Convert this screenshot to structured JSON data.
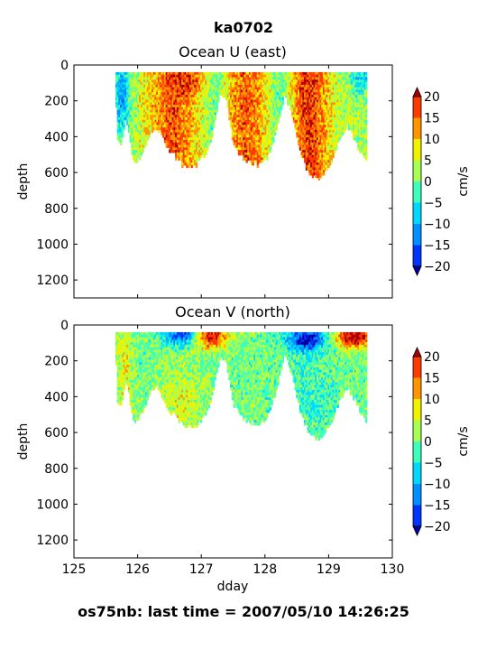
{
  "figure": {
    "title": "ka0702",
    "footer": "os75nb: last time = 2007/05/10 14:26:25"
  },
  "colorbar": {
    "label": "cm/s",
    "ticks": [
      20,
      15,
      10,
      5,
      0,
      -5,
      -10,
      -15,
      -20
    ],
    "tick_labels": [
      "20",
      "15",
      "10",
      "5",
      "0",
      "−5",
      "−10",
      "−15",
      "−20"
    ],
    "colors": [
      "#0000a0",
      "#0034ff",
      "#0090ff",
      "#00d8ff",
      "#3dffba",
      "#a6ff52",
      "#f0f200",
      "#ff9600",
      "#ff3a00",
      "#a80000"
    ],
    "vmin": -20,
    "vmax": 20,
    "extend": "both"
  },
  "chart_data": [
    {
      "type": "heatmap",
      "title": "Ocean U (east)",
      "xlabel": "",
      "ylabel": "depth",
      "xlim": [
        125,
        130
      ],
      "ylim": [
        1300,
        0
      ],
      "x_ticks": [
        125,
        126,
        127,
        128,
        129,
        130
      ],
      "y_ticks": [
        0,
        200,
        400,
        600,
        800,
        1000,
        1200
      ],
      "y_tick_labels": [
        "0",
        "200",
        "400",
        "600",
        "800",
        "1000",
        "1200"
      ],
      "data_start": 125.65,
      "data_end": 129.6,
      "surface_depth": 40,
      "profile_depth_envelope": [
        [
          125.65,
          80
        ],
        [
          125.68,
          420
        ],
        [
          125.75,
          440
        ],
        [
          125.82,
          280
        ],
        [
          125.9,
          470
        ],
        [
          125.95,
          540
        ],
        [
          126.05,
          500
        ],
        [
          126.2,
          360
        ],
        [
          126.3,
          340
        ],
        [
          126.5,
          470
        ],
        [
          126.7,
          550
        ],
        [
          126.9,
          560
        ],
        [
          127.05,
          500
        ],
        [
          127.15,
          420
        ],
        [
          127.3,
          160
        ],
        [
          127.4,
          200
        ],
        [
          127.5,
          440
        ],
        [
          127.7,
          530
        ],
        [
          127.9,
          550
        ],
        [
          128.05,
          500
        ],
        [
          128.2,
          330
        ],
        [
          128.3,
          160
        ],
        [
          128.4,
          240
        ],
        [
          128.55,
          470
        ],
        [
          128.7,
          610
        ],
        [
          128.85,
          630
        ],
        [
          129.0,
          560
        ],
        [
          129.15,
          440
        ],
        [
          129.3,
          340
        ],
        [
          129.45,
          440
        ],
        [
          129.55,
          520
        ],
        [
          129.6,
          520
        ]
      ],
      "value_range": [
        -20,
        20
      ],
      "pattern": "mostly positive (5 to 20 cm/s) with strongest flow near 126.3-126.8, 127.5-127.9 and 128.5-128.9; negative near the surface at start and near 129.5"
    },
    {
      "type": "heatmap",
      "title": "Ocean V (north)",
      "xlabel": "dday",
      "ylabel": "depth",
      "xlim": [
        125,
        130
      ],
      "ylim": [
        1300,
        0
      ],
      "x_ticks": [
        125,
        126,
        127,
        128,
        129,
        130
      ],
      "x_tick_labels": [
        "125",
        "126",
        "127",
        "128",
        "129",
        "130"
      ],
      "y_ticks": [
        0,
        200,
        400,
        600,
        800,
        1000,
        1200
      ],
      "y_tick_labels": [
        "0",
        "200",
        "400",
        "600",
        "800",
        "1000",
        "1200"
      ],
      "data_start": 125.65,
      "data_end": 129.6,
      "surface_depth": 40,
      "profile_depth_envelope": [
        [
          125.65,
          80
        ],
        [
          125.68,
          420
        ],
        [
          125.75,
          440
        ],
        [
          125.82,
          280
        ],
        [
          125.9,
          470
        ],
        [
          125.95,
          540
        ],
        [
          126.05,
          500
        ],
        [
          126.2,
          360
        ],
        [
          126.3,
          340
        ],
        [
          126.5,
          470
        ],
        [
          126.7,
          550
        ],
        [
          126.9,
          560
        ],
        [
          127.05,
          500
        ],
        [
          127.15,
          420
        ],
        [
          127.3,
          160
        ],
        [
          127.4,
          200
        ],
        [
          127.5,
          440
        ],
        [
          127.7,
          530
        ],
        [
          127.9,
          550
        ],
        [
          128.05,
          500
        ],
        [
          128.2,
          330
        ],
        [
          128.3,
          160
        ],
        [
          128.4,
          240
        ],
        [
          128.55,
          470
        ],
        [
          128.7,
          610
        ],
        [
          128.85,
          630
        ],
        [
          129.0,
          560
        ],
        [
          129.15,
          440
        ],
        [
          129.3,
          340
        ],
        [
          129.45,
          440
        ],
        [
          129.55,
          520
        ],
        [
          129.6,
          520
        ]
      ],
      "value_range": [
        -20,
        20
      ],
      "pattern": "mostly near zero (-5 to 5 cm/s); strongly positive near surface 127.0-127.3 and 129.2-129.6; negative near surface around 126.7 and 128.6"
    }
  ]
}
